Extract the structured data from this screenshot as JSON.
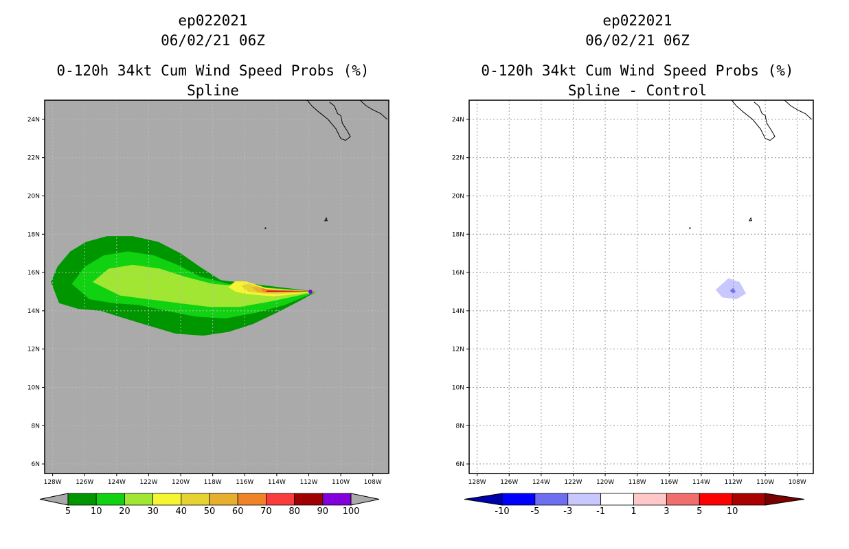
{
  "left_panel": {
    "title_lines": [
      "ep022021",
      "06/02/21 06Z",
      "0-120h 34kt Cum Wind Speed Probs (%)",
      "Spline"
    ]
  },
  "right_panel": {
    "title_lines": [
      "ep022021",
      "06/02/21 06Z",
      "0-120h 34kt Cum Wind Speed Probs (%)",
      "Spline - Control"
    ]
  },
  "chart_data": [
    {
      "type": "heatmap",
      "subtitle": "Spline",
      "title": "0-120h 34kt Cum Wind Speed Probs (%)",
      "x_ticks": [
        "128W",
        "126W",
        "124W",
        "122W",
        "120W",
        "118W",
        "116W",
        "114W",
        "112W",
        "110W",
        "108W"
      ],
      "y_ticks": [
        "24N",
        "22N",
        "20N",
        "18N",
        "16N",
        "14N",
        "12N",
        "10N",
        "8N",
        "6N"
      ],
      "xlim_lon_west": [
        128.5,
        107
      ],
      "ylim_lat": [
        5.5,
        25
      ],
      "background_color": "#aaaaaa",
      "colorbar": {
        "labels": [
          "5",
          "10",
          "20",
          "30",
          "40",
          "50",
          "60",
          "70",
          "80",
          "90",
          "100"
        ],
        "colors": [
          "#009600",
          "#10d210",
          "#a0e632",
          "#f5f532",
          "#e6d232",
          "#e6af2d",
          "#f08228",
          "#fa3c3c",
          "#a00000",
          "#8200dc"
        ]
      },
      "storm_center_lon_lat": [
        111.5,
        15.0
      ]
    },
    {
      "type": "heatmap",
      "subtitle": "Spline - Control",
      "title": "0-120h 34kt Cum Wind Speed Probs (%)",
      "x_ticks": [
        "128W",
        "126W",
        "124W",
        "122W",
        "120W",
        "118W",
        "116W",
        "114W",
        "112W",
        "110W",
        "108W"
      ],
      "y_ticks": [
        "24N",
        "22N",
        "20N",
        "18N",
        "16N",
        "14N",
        "12N",
        "10N",
        "8N",
        "6N"
      ],
      "xlim_lon_west": [
        128.5,
        107
      ],
      "ylim_lat": [
        5.5,
        25
      ],
      "grid": true,
      "colorbar": {
        "labels": [
          "-10",
          "-5",
          "-3",
          "-1",
          "1",
          "3",
          "5",
          "10"
        ],
        "colors": [
          "#0000aa",
          "#0000ff",
          "#6e6ef0",
          "#c8c8ff",
          "#ffffff",
          "#ffc8c8",
          "#f06e6e",
          "#ff0000",
          "#aa0000",
          "#780000"
        ]
      },
      "anomaly_center_lon_lat": [
        112.0,
        15.0
      ],
      "anomaly_values": [
        -1,
        -3
      ]
    }
  ]
}
